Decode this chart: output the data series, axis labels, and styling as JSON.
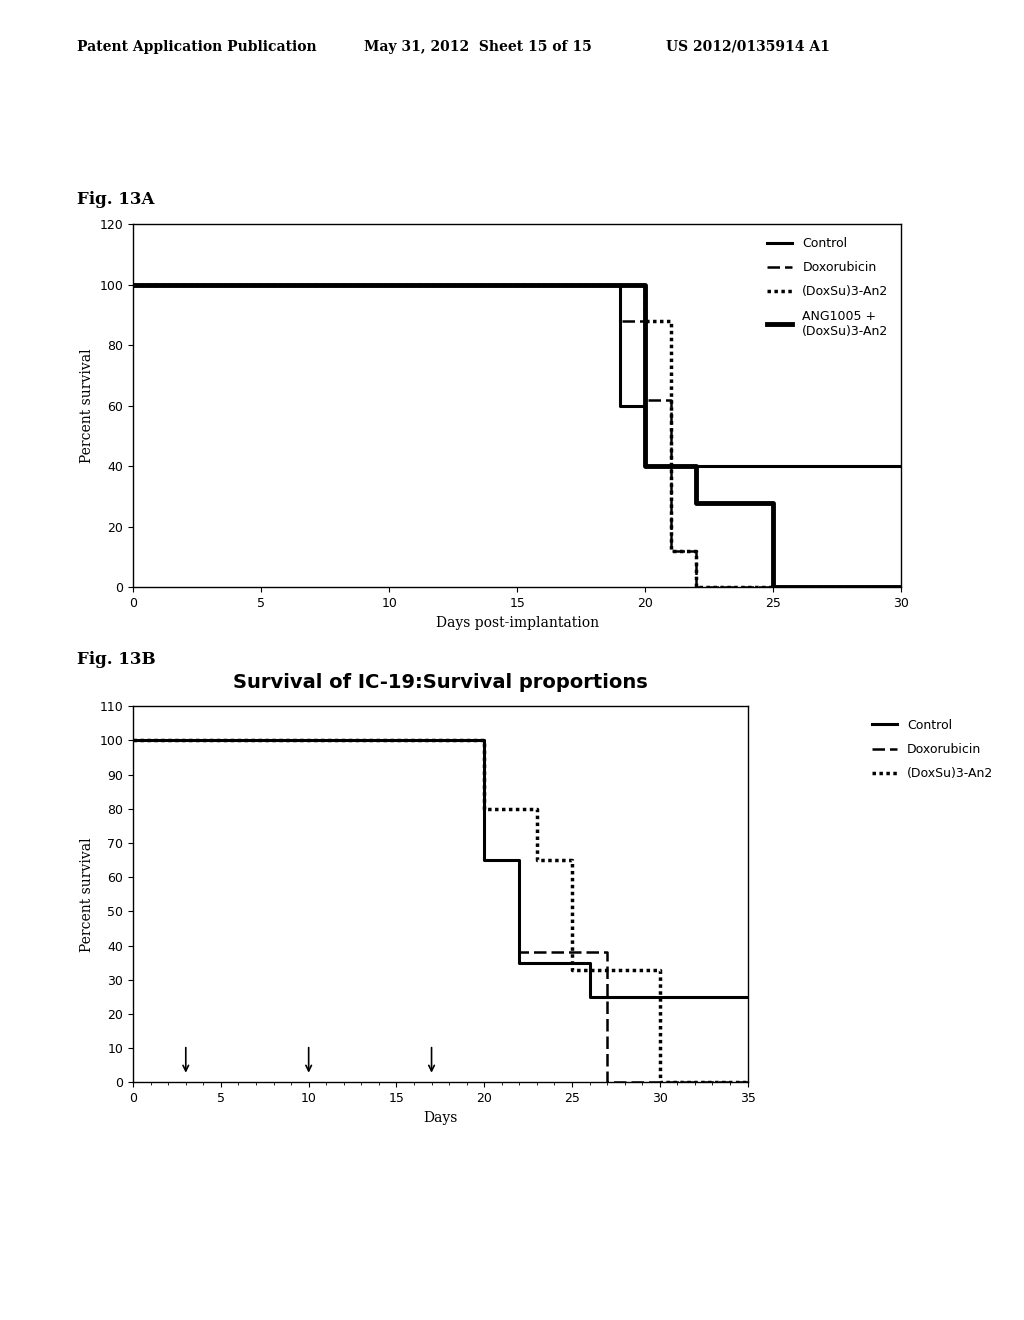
{
  "header_left": "Patent Application Publication",
  "header_mid": "May 31, 2012  Sheet 15 of 15",
  "header_right": "US 2012/0135914 A1",
  "figA_label": "Fig. 13A",
  "figB_label": "Fig. 13B",
  "figB_title": "Survival of IC-19:Survival proportions",
  "figA": {
    "xlabel": "Days post-implantation",
    "ylabel": "Percent survival",
    "xlim": [
      0,
      30
    ],
    "ylim": [
      0,
      120
    ],
    "yticks": [
      0,
      20,
      40,
      60,
      80,
      100,
      120
    ],
    "xticks": [
      0,
      5,
      10,
      15,
      20,
      25,
      30
    ],
    "control_x": [
      0,
      19,
      19,
      20,
      20,
      30
    ],
    "control_y": [
      100,
      100,
      60,
      60,
      40,
      40
    ],
    "dox_x": [
      0,
      19,
      19,
      20,
      20,
      21,
      21,
      22,
      22,
      30
    ],
    "dox_y": [
      100,
      100,
      88,
      88,
      62,
      62,
      12,
      12,
      0,
      0
    ],
    "doxsu_x": [
      0,
      20,
      20,
      21,
      21,
      22,
      22,
      30
    ],
    "doxsu_y": [
      100,
      100,
      88,
      88,
      12,
      12,
      0,
      0
    ],
    "ang_x": [
      0,
      20,
      20,
      22,
      22,
      25,
      25,
      27,
      27,
      30
    ],
    "ang_y": [
      100,
      100,
      40,
      40,
      28,
      28,
      0,
      0,
      0,
      0
    ]
  },
  "figB": {
    "xlabel": "Days",
    "ylabel": "Percent survival",
    "xlim": [
      0,
      35
    ],
    "ylim": [
      0,
      110
    ],
    "yticks": [
      0,
      10,
      20,
      30,
      40,
      50,
      60,
      70,
      80,
      90,
      100,
      110
    ],
    "xticks": [
      0,
      5,
      10,
      15,
      20,
      25,
      30,
      35
    ],
    "arrow_days": [
      3,
      10,
      17
    ],
    "control_x": [
      0,
      20,
      20,
      22,
      22,
      26,
      26,
      35
    ],
    "control_y": [
      100,
      100,
      65,
      65,
      35,
      35,
      25,
      25
    ],
    "dox_x": [
      0,
      20,
      20,
      22,
      22,
      27,
      27,
      35
    ],
    "dox_y": [
      100,
      100,
      65,
      65,
      38,
      38,
      0,
      0
    ],
    "doxsu_x": [
      0,
      20,
      20,
      23,
      23,
      25,
      25,
      30,
      30,
      35
    ],
    "doxsu_y": [
      100,
      100,
      80,
      80,
      65,
      65,
      33,
      33,
      0,
      0
    ]
  }
}
